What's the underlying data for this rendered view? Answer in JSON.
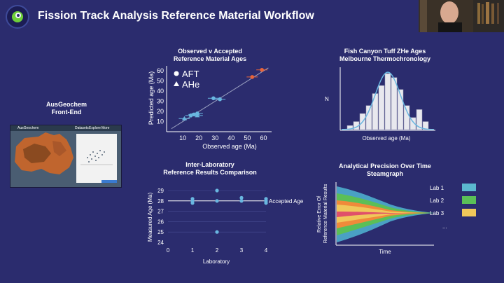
{
  "header": {
    "title": "Fission Track Analysis Reference Material Workflow"
  },
  "sections": {
    "frontend": {
      "title": "AusGeochem",
      "subtitle": "Front-End"
    },
    "observed": {
      "title": "Observed v Accepted",
      "subtitle": "Reference Material Ages"
    },
    "fishcanyon": {
      "title": "Fish Canyon Tuff ZHe Ages",
      "subtitle": "Melbourne Thermochronology"
    },
    "interlab": {
      "title": "Inter-Laboratory",
      "subtitle": "Reference Results Comparison"
    },
    "precision": {
      "title": "Analytical Precision Over Time",
      "subtitle": "Steamgraph"
    }
  },
  "screenshot": {
    "app_name": "AusGeochem",
    "menu": [
      "Datasets",
      "Explore",
      "More"
    ]
  },
  "colors": {
    "background": "#2b2c6e",
    "accent_dot": "#69b6e0",
    "orange": "#e8643a",
    "lab1": "#5bb9cf",
    "lab2": "#5bbf57",
    "lab3": "#f0c75a"
  },
  "chart_data": [
    {
      "id": "observed_vs_accepted",
      "type": "scatter",
      "xlabel": "Observed age (Ma)",
      "ylabel": "Predicted age (Ma)",
      "xlim": [
        0,
        65
      ],
      "ylim": [
        0,
        65
      ],
      "xticks": [
        10,
        20,
        30,
        40,
        50,
        60
      ],
      "yticks": [
        10,
        20,
        30,
        40,
        50,
        60
      ],
      "legend": [
        "AFT",
        "AHe"
      ],
      "legend_position": "top-left",
      "points": [
        {
          "x": 11,
          "y": 13,
          "marker": "triangle",
          "color": "#69b6e0"
        },
        {
          "x": 15,
          "y": 16,
          "marker": "circle",
          "color": "#69b6e0"
        },
        {
          "x": 17,
          "y": 17,
          "marker": "circle",
          "color": "#69b6e0"
        },
        {
          "x": 19,
          "y": 16,
          "marker": "triangle",
          "color": "#69b6e0"
        },
        {
          "x": 19,
          "y": 18,
          "marker": "circle",
          "color": "#69b6e0"
        },
        {
          "x": 29,
          "y": 33,
          "marker": "circle",
          "color": "#69b6e0"
        },
        {
          "x": 33,
          "y": 32,
          "marker": "circle",
          "color": "#69b6e0"
        },
        {
          "x": 53,
          "y": 54,
          "marker": "circle",
          "color": "#e8643a"
        },
        {
          "x": 59,
          "y": 61,
          "marker": "circle",
          "color": "#e8643a"
        }
      ]
    },
    {
      "id": "fish_canyon",
      "type": "bar",
      "xlabel": "Observed age (Ma)",
      "ylabel": "N",
      "values": [
        1,
        2,
        4,
        6,
        9,
        11,
        14,
        13,
        10,
        6,
        3,
        5,
        2
      ],
      "fit_curve": true
    },
    {
      "id": "interlab",
      "type": "scatter",
      "xlabel": "Laboratory",
      "ylabel": "Measured Age (Ma)",
      "xlim": [
        0,
        4
      ],
      "ylim": [
        24,
        29
      ],
      "xticks": [
        0,
        1,
        2,
        3,
        4
      ],
      "yticks": [
        24,
        25,
        26,
        27,
        28,
        29
      ],
      "reference_line": {
        "y": 28,
        "label": "Accepted Age"
      },
      "points": [
        {
          "x": 1,
          "y": 28.2
        },
        {
          "x": 1,
          "y": 28.0
        },
        {
          "x": 1,
          "y": 27.8
        },
        {
          "x": 2,
          "y": 29.0
        },
        {
          "x": 2,
          "y": 28.0
        },
        {
          "x": 2,
          "y": 25.0
        },
        {
          "x": 3,
          "y": 28.3
        },
        {
          "x": 3,
          "y": 28.0
        },
        {
          "x": 4,
          "y": 28.2
        },
        {
          "x": 4,
          "y": 28.0
        },
        {
          "x": 4,
          "y": 27.8
        }
      ]
    },
    {
      "id": "steamgraph",
      "type": "area",
      "xlabel": "Time",
      "ylabel": "Relative Error Of Reference Material Results",
      "legend": [
        {
          "name": "Lab 1",
          "color": "#5bb9cf"
        },
        {
          "name": "Lab 2",
          "color": "#5bbf57"
        },
        {
          "name": "Lab 3",
          "color": "#f0c75a"
        }
      ],
      "legend_more": "..."
    }
  ]
}
